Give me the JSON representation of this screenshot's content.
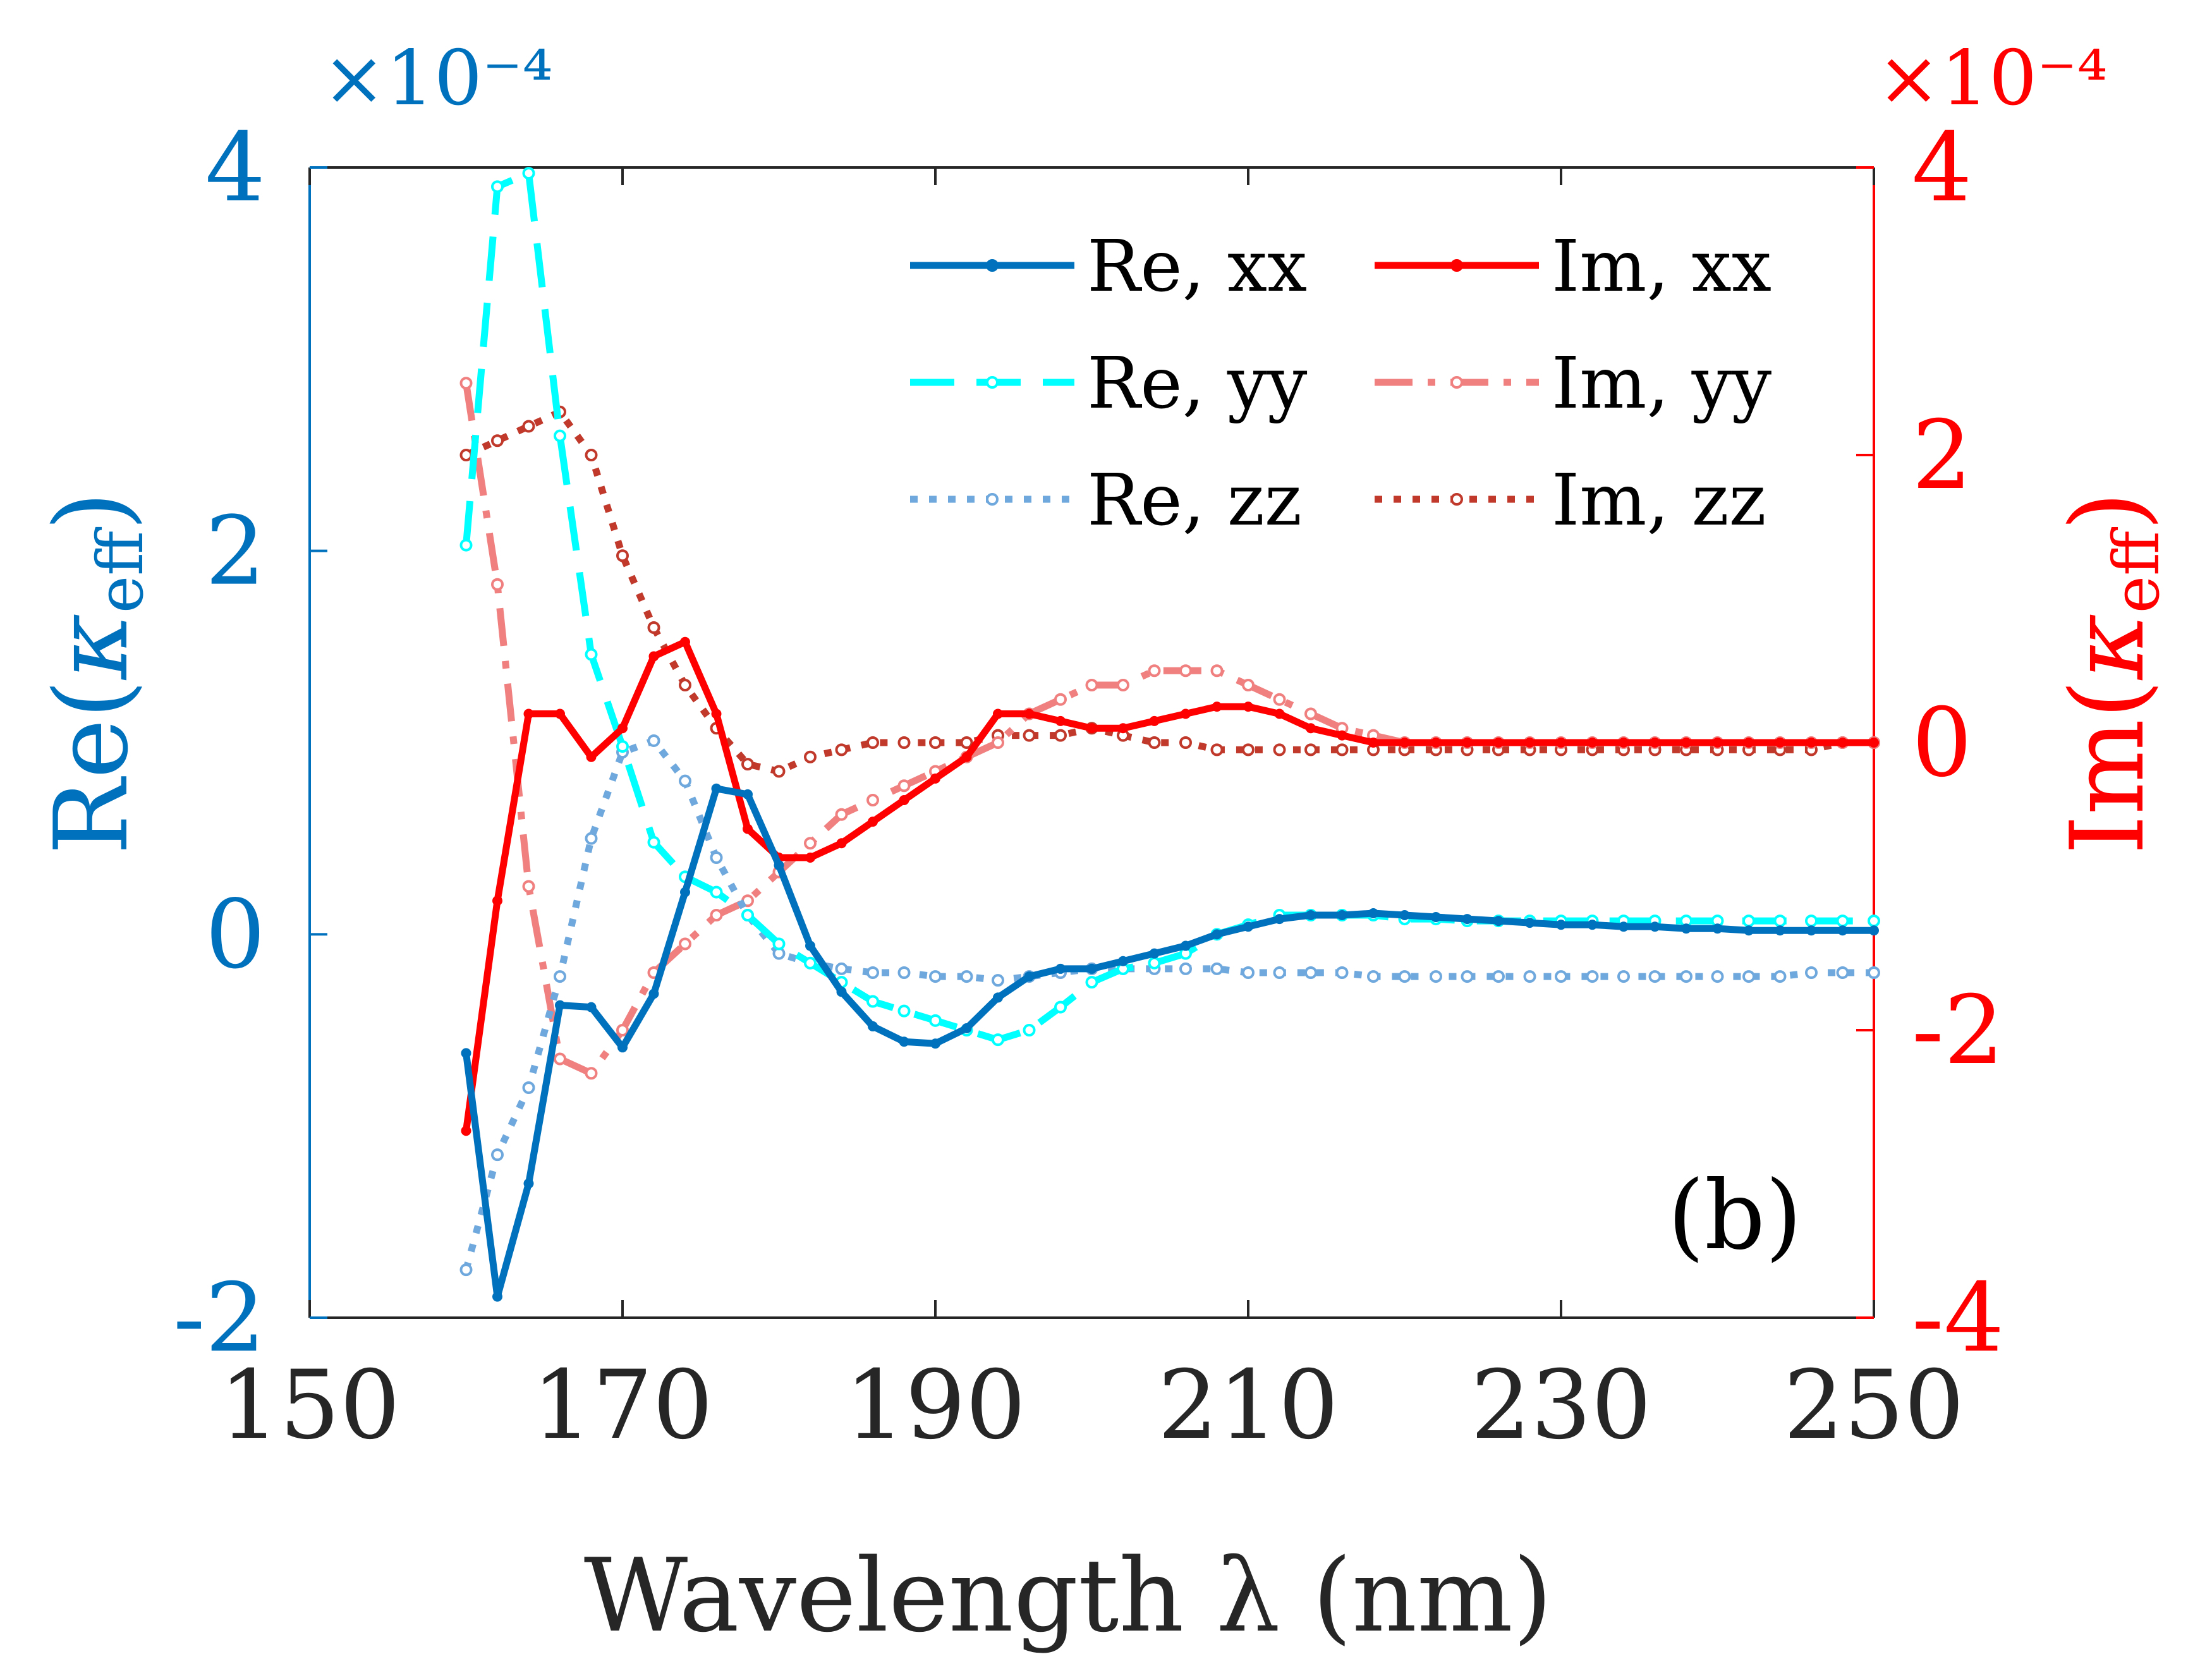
{
  "chart_data": {
    "type": "line",
    "panel_label": "(b)",
    "xlabel": "Wavelength λ (nm)",
    "xlim": [
      150,
      250
    ],
    "xticks": [
      "150",
      "170",
      "190",
      "210",
      "230",
      "250"
    ],
    "y_left": {
      "label_main": "Re(",
      "label_symbol": "κ",
      "label_sub": "eff",
      "label_close": ")",
      "exponent_label": "×10⁻⁴",
      "ylim": [
        -2,
        4
      ],
      "ticks": [
        "-2",
        "0",
        "2",
        "4"
      ],
      "color": "#0072BD"
    },
    "y_right": {
      "label_main": "Im(",
      "label_symbol": "κ",
      "label_sub": "eff",
      "label_close": ")",
      "exponent_label": "×10⁻⁴",
      "ylim": [
        -4,
        4
      ],
      "ticks": [
        "-4",
        "-2",
        "0",
        "2",
        "4"
      ],
      "color": "#FF0000"
    },
    "legend": {
      "placement": "top-right",
      "entries": [
        "Re, xx",
        "Im, xx",
        "Re, yy",
        "Im, yy",
        "Re, zz",
        "Im, zz"
      ]
    },
    "x": [
      160,
      162,
      164,
      166,
      168,
      170,
      172,
      174,
      176,
      178,
      180,
      182,
      184,
      186,
      188,
      190,
      192,
      194,
      196,
      198,
      200,
      202,
      204,
      206,
      208,
      210,
      212,
      214,
      216,
      218,
      220,
      222,
      224,
      226,
      228,
      230,
      232,
      234,
      236,
      238,
      240,
      242,
      244,
      246,
      248,
      250
    ],
    "series": [
      {
        "name": "Re, xx",
        "axis": "left",
        "color": "#0072BD",
        "style": "solid",
        "values": [
          -0.62,
          -1.89,
          -1.3,
          -0.37,
          -0.38,
          -0.59,
          -0.31,
          0.22,
          0.76,
          0.73,
          0.36,
          -0.06,
          -0.3,
          -0.48,
          -0.56,
          -0.57,
          -0.49,
          -0.33,
          -0.22,
          -0.18,
          -0.18,
          -0.14,
          -0.1,
          -0.06,
          0.0,
          0.04,
          0.08,
          0.1,
          0.1,
          0.11,
          0.1,
          0.09,
          0.08,
          0.07,
          0.06,
          0.05,
          0.05,
          0.04,
          0.04,
          0.03,
          0.03,
          0.02,
          0.02,
          0.02,
          0.02,
          0.02
        ]
      },
      {
        "name": "Im, xx",
        "axis": "right",
        "color": "#FF0000",
        "style": "solid",
        "values": [
          -2.7,
          -1.1,
          0.2,
          0.2,
          -0.1,
          0.1,
          0.6,
          0.7,
          0.2,
          -0.6,
          -0.8,
          -0.8,
          -0.7,
          -0.55,
          -0.4,
          -0.25,
          -0.1,
          0.2,
          0.2,
          0.15,
          0.1,
          0.1,
          0.15,
          0.2,
          0.25,
          0.25,
          0.2,
          0.1,
          0.05,
          0.0,
          0.0,
          0.0,
          0.0,
          0.0,
          0.0,
          0.0,
          0.0,
          0.0,
          0.0,
          0.0,
          0.0,
          0.0,
          0.0,
          0.0,
          0.0,
          0.0
        ]
      },
      {
        "name": "Re, yy",
        "axis": "left",
        "color": "#00FFFF",
        "style": "dashed",
        "values": [
          2.03,
          3.9,
          3.97,
          2.6,
          1.46,
          0.98,
          0.48,
          0.3,
          0.22,
          0.1,
          -0.05,
          -0.15,
          -0.25,
          -0.35,
          -0.4,
          -0.45,
          -0.5,
          -0.55,
          -0.5,
          -0.38,
          -0.25,
          -0.18,
          -0.15,
          -0.1,
          0.0,
          0.05,
          0.1,
          0.1,
          0.1,
          0.1,
          0.08,
          0.08,
          0.07,
          0.07,
          0.07,
          0.07,
          0.07,
          0.07,
          0.07,
          0.07,
          0.07,
          0.07,
          0.07,
          0.07,
          0.07,
          0.07
        ]
      },
      {
        "name": "Im, yy",
        "axis": "right",
        "color": "#F08080",
        "style": "dashdot",
        "values": [
          2.5,
          1.1,
          -1.0,
          -2.2,
          -2.3,
          -2.0,
          -1.6,
          -1.4,
          -1.2,
          -1.1,
          -0.9,
          -0.7,
          -0.5,
          -0.4,
          -0.3,
          -0.2,
          -0.1,
          0.0,
          0.2,
          0.3,
          0.4,
          0.4,
          0.5,
          0.5,
          0.5,
          0.4,
          0.3,
          0.2,
          0.1,
          0.05,
          0.0,
          0.0,
          0.0,
          0.0,
          0.0,
          0.0,
          0.0,
          0.0,
          0.0,
          0.0,
          0.0,
          0.0,
          0.0,
          0.0,
          0.0,
          0.0
        ]
      },
      {
        "name": "Re, zz",
        "axis": "left",
        "color": "#6FA8DC",
        "style": "dotted",
        "values": [
          -1.75,
          -1.15,
          -0.8,
          -0.22,
          0.5,
          0.95,
          1.01,
          0.8,
          0.4,
          0.1,
          -0.1,
          -0.15,
          -0.18,
          -0.2,
          -0.2,
          -0.22,
          -0.22,
          -0.24,
          -0.22,
          -0.2,
          -0.18,
          -0.18,
          -0.18,
          -0.18,
          -0.18,
          -0.2,
          -0.2,
          -0.2,
          -0.2,
          -0.22,
          -0.22,
          -0.22,
          -0.22,
          -0.22,
          -0.22,
          -0.22,
          -0.22,
          -0.22,
          -0.22,
          -0.22,
          -0.22,
          -0.22,
          -0.22,
          -0.2,
          -0.2,
          -0.2
        ]
      },
      {
        "name": "Im, zz",
        "axis": "right",
        "color": "#C0392B",
        "style": "dotted",
        "values": [
          2.0,
          2.1,
          2.2,
          2.3,
          2.0,
          1.3,
          0.8,
          0.4,
          0.1,
          -0.15,
          -0.2,
          -0.1,
          -0.05,
          0.0,
          0.0,
          0.0,
          0.0,
          0.05,
          0.05,
          0.05,
          0.1,
          0.05,
          0.0,
          0.0,
          -0.05,
          -0.05,
          -0.05,
          -0.05,
          -0.05,
          -0.05,
          -0.05,
          -0.05,
          -0.05,
          -0.05,
          -0.05,
          -0.05,
          -0.05,
          -0.05,
          -0.05,
          -0.05,
          -0.05,
          -0.05,
          -0.05,
          -0.05,
          0.0,
          0.0
        ]
      }
    ]
  }
}
